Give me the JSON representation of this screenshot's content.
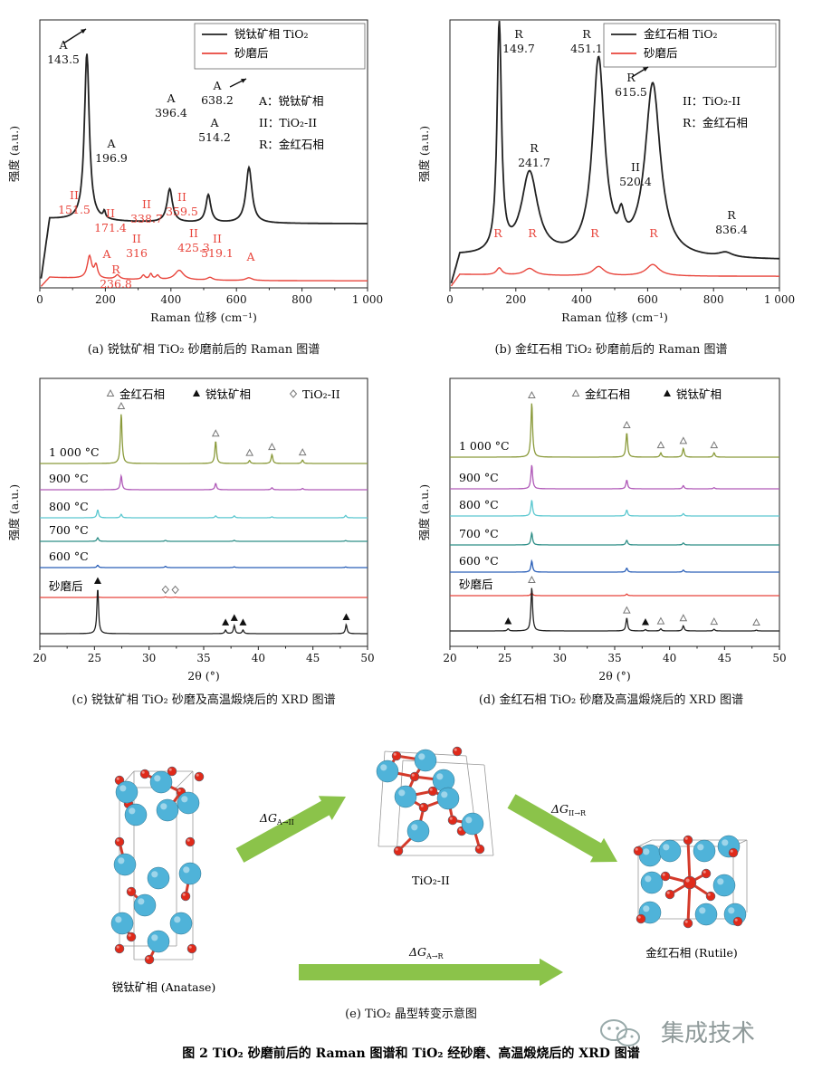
{
  "figure_caption": "图 2 TiO₂ 砂磨前后的 Raman 图谱和 TiO₂ 经砂磨、高温煅烧后的 XRD 图谱",
  "watermark": "集成技术",
  "colors": {
    "black": "#222222",
    "red": "#e8453c",
    "olive": "#8a9a3a",
    "purple": "#b05ab8",
    "cyan": "#5cc8d0",
    "teal": "#2f8f88",
    "blue": "#2a5fb8",
    "arrow_green": "#8bc34a",
    "ti_blue": "#4fb3d9",
    "o_red": "#e02a1a"
  },
  "chart_data": [
    {
      "id": "a",
      "type": "line",
      "caption": "(a) 锐钛矿相 TiO₂ 砂磨前后的 Raman 图谱",
      "xlabel": "Raman 位移 (cm⁻¹)",
      "ylabel": "强度 (a.u.)",
      "xlim": [
        0,
        1000
      ],
      "xticks": [
        "0",
        "200",
        "400",
        "600",
        "800",
        "1 000"
      ],
      "legend": [
        "锐钛矿相 TiO₂",
        "砂磨后"
      ],
      "legend_placement": "top-right",
      "phase_key": [
        "A：锐钛矿相",
        "II：TiO₂-II",
        "R：金红石相"
      ],
      "series": [
        {
          "name": "锐钛矿相 TiO₂",
          "color": "black",
          "baseline": 0.46,
          "background": [
            0.04,
            0.0
          ],
          "peaks": [
            [
              143.5,
              1.2,
              9
            ],
            [
              196.9,
              0.05,
              4
            ],
            [
              396.4,
              0.24,
              10
            ],
            [
              514.2,
              0.2,
              9
            ],
            [
              638.2,
              0.4,
              11
            ]
          ]
        },
        {
          "name": "砂磨后",
          "color": "red",
          "baseline": 0.05,
          "background": [
            0.03,
            0.0
          ],
          "peaks": [
            [
              151.5,
              0.16,
              8
            ],
            [
              171.4,
              0.09,
              6
            ],
            [
              236.8,
              0.03,
              8
            ],
            [
              316,
              0.03,
              6
            ],
            [
              338.7,
              0.04,
              5
            ],
            [
              359.5,
              0.03,
              6
            ],
            [
              425.3,
              0.07,
              16
            ],
            [
              519.1,
              0.02,
              10
            ],
            [
              638,
              0.02,
              12
            ]
          ]
        }
      ],
      "annotations": [
        {
          "text": "A",
          "value": "143.5",
          "x": 143.5,
          "color": "black"
        },
        {
          "text": "A",
          "value": "196.9",
          "x": 196.9,
          "color": "black"
        },
        {
          "text": "A",
          "value": "396.4",
          "x": 396.4,
          "color": "black"
        },
        {
          "text": "A",
          "value": "514.2",
          "x": 514.2,
          "color": "black"
        },
        {
          "text": "A",
          "value": "638.2",
          "x": 638.2,
          "color": "black"
        },
        {
          "text": "II",
          "value": "151.5",
          "x": 151.5,
          "color": "red"
        },
        {
          "text": "II",
          "value": "171.4",
          "x": 171.4,
          "color": "red"
        },
        {
          "text": "R",
          "value": "236.8",
          "x": 236.8,
          "color": "red"
        },
        {
          "text": "A",
          "value": "",
          "x": 200,
          "color": "red"
        },
        {
          "text": "II",
          "value": "316",
          "x": 316,
          "color": "red"
        },
        {
          "text": "II",
          "value": "338.7",
          "x": 338.7,
          "color": "red"
        },
        {
          "text": "II",
          "value": "359.5",
          "x": 359.5,
          "color": "red"
        },
        {
          "text": "II",
          "value": "425.3",
          "x": 425.3,
          "color": "red"
        },
        {
          "text": "II",
          "value": "519.1",
          "x": 519.1,
          "color": "red"
        },
        {
          "text": "A",
          "value": "",
          "x": 638,
          "color": "red"
        }
      ]
    },
    {
      "id": "b",
      "type": "line",
      "caption": "(b) 金红石相 TiO₂ 砂磨前后的 Raman 图谱",
      "xlabel": "Raman 位移 (cm⁻¹)",
      "ylabel": "强度 (a.u.)",
      "xlim": [
        0,
        1000
      ],
      "xticks": [
        "0",
        "200",
        "400",
        "600",
        "800",
        "1 000"
      ],
      "legend": [
        "金红石相 TiO₂",
        "砂磨后"
      ],
      "legend_placement": "top-right",
      "phase_key": [
        "II：TiO₂-II",
        "R：金红石相"
      ],
      "series": [
        {
          "name": "金红石相 TiO₂",
          "color": "black",
          "baseline": 0.12,
          "background": [
            0.02,
            0.0
          ],
          "peaks": [
            [
              149.7,
              1.0,
              8
            ],
            [
              241.7,
              0.36,
              30
            ],
            [
              451.1,
              0.85,
              22
            ],
            [
              520.4,
              0.1,
              10
            ],
            [
              615.5,
              0.75,
              28
            ],
            [
              836.4,
              0.02,
              25
            ]
          ]
        },
        {
          "name": "砂磨后",
          "color": "red",
          "baseline": 0.05,
          "background": [
            0.01,
            0.0
          ],
          "peaks": [
            [
              149.7,
              0.03,
              10
            ],
            [
              241.7,
              0.03,
              20
            ],
            [
              451.1,
              0.04,
              20
            ],
            [
              615.5,
              0.05,
              24
            ]
          ]
        }
      ],
      "annotations": [
        {
          "text": "R",
          "value": "149.7",
          "x": 149.7,
          "color": "black"
        },
        {
          "text": "R",
          "value": "241.7",
          "x": 241.7,
          "color": "black"
        },
        {
          "text": "R",
          "value": "451.1",
          "x": 451.1,
          "color": "black"
        },
        {
          "text": "R",
          "value": "615.5",
          "x": 615.5,
          "color": "black"
        },
        {
          "text": "II",
          "value": "520.4",
          "x": 520.4,
          "color": "black"
        },
        {
          "text": "R",
          "value": "836.4",
          "x": 836.4,
          "color": "black"
        },
        {
          "text": "R",
          "value": "",
          "x": 149.7,
          "color": "red"
        },
        {
          "text": "R",
          "value": "",
          "x": 241.7,
          "color": "red"
        },
        {
          "text": "R",
          "value": "",
          "x": 451.1,
          "color": "red"
        },
        {
          "text": "R",
          "value": "",
          "x": 615.5,
          "color": "red"
        }
      ]
    },
    {
      "id": "c",
      "type": "line",
      "caption": "(c) 锐钛矿相 TiO₂ 砂磨及高温煅烧后的 XRD 图谱",
      "xlabel": "2θ (°)",
      "ylabel": "强度 (a.u.)",
      "xlim": [
        20,
        50
      ],
      "xticks": [
        "20",
        "25",
        "30",
        "35",
        "40",
        "45",
        "50"
      ],
      "legend": [
        "金红石相",
        "锐钛矿相",
        "TiO₂-II"
      ],
      "legend_placement": "top",
      "series": [
        {
          "name": "1 000 °C",
          "color": "olive",
          "peaks": [
            [
              27.45,
              1.0
            ],
            [
              36.1,
              0.45
            ],
            [
              39.2,
              0.06
            ],
            [
              41.25,
              0.18
            ],
            [
              44.05,
              0.07
            ]
          ],
          "markers": [
            {
              "shape": "tri-open",
              "x": [
                27.45,
                36.1,
                39.2,
                41.25,
                44.05
              ]
            }
          ]
        },
        {
          "name": "900 °C",
          "color": "purple",
          "peaks": [
            [
              27.45,
              0.55
            ],
            [
              36.1,
              0.25
            ],
            [
              41.25,
              0.08
            ],
            [
              44.05,
              0.05
            ]
          ]
        },
        {
          "name": "800 °C",
          "color": "cyan",
          "peaks": [
            [
              25.3,
              0.4
            ],
            [
              27.45,
              0.18
            ],
            [
              36.1,
              0.1
            ],
            [
              37.8,
              0.1
            ],
            [
              41.25,
              0.05
            ],
            [
              48.0,
              0.12
            ]
          ]
        },
        {
          "name": "700 °C",
          "color": "teal",
          "peaks": [
            [
              25.3,
              0.18
            ],
            [
              31.5,
              0.05
            ],
            [
              37.8,
              0.05
            ],
            [
              48.0,
              0.04
            ]
          ]
        },
        {
          "name": "600 °C",
          "color": "blue",
          "peaks": [
            [
              25.3,
              0.12
            ],
            [
              31.5,
              0.06
            ],
            [
              37.8,
              0.04
            ],
            [
              48.0,
              0.03
            ]
          ]
        },
        {
          "name": "砂磨后",
          "color": "red",
          "peaks": [
            [
              25.3,
              0.04
            ],
            [
              31.5,
              0.03
            ],
            [
              32.4,
              0.02
            ]
          ],
          "markers": [
            {
              "shape": "diamond-open",
              "x": [
                31.5,
                32.4
              ]
            }
          ]
        },
        {
          "name": "",
          "color": "black",
          "peaks": [
            [
              25.3,
              1.0
            ],
            [
              37.0,
              0.08
            ],
            [
              37.8,
              0.18
            ],
            [
              38.6,
              0.08
            ],
            [
              48.05,
              0.2
            ]
          ],
          "markers": [
            {
              "shape": "tri-filled",
              "x": [
                25.3,
                37.0,
                37.8,
                38.6,
                48.05
              ]
            }
          ]
        }
      ]
    },
    {
      "id": "d",
      "type": "line",
      "caption": "(d) 金红石相 TiO₂ 砂磨及高温煅烧后的 XRD 图谱",
      "xlabel": "2θ (°)",
      "ylabel": "强度 (a.u.)",
      "xlim": [
        20,
        50
      ],
      "xticks": [
        "20",
        "25",
        "30",
        "35",
        "40",
        "45",
        "50"
      ],
      "legend": [
        "金红石相",
        "锐钛矿相"
      ],
      "legend_placement": "top",
      "series": [
        {
          "name": "1 000 °C",
          "color": "olive",
          "peaks": [
            [
              27.45,
              1.0
            ],
            [
              36.1,
              0.45
            ],
            [
              39.2,
              0.08
            ],
            [
              41.25,
              0.16
            ],
            [
              44.05,
              0.08
            ]
          ],
          "markers": [
            {
              "shape": "tri-open",
              "x": [
                27.45,
                36.1,
                39.2,
                41.25,
                44.05
              ]
            }
          ]
        },
        {
          "name": "900 °C",
          "color": "purple",
          "peaks": [
            [
              27.45,
              0.6
            ],
            [
              36.1,
              0.22
            ],
            [
              41.25,
              0.08
            ],
            [
              44.05,
              0.03
            ]
          ]
        },
        {
          "name": "800 °C",
          "color": "cyan",
          "peaks": [
            [
              27.45,
              0.4
            ],
            [
              36.1,
              0.15
            ],
            [
              41.25,
              0.06
            ]
          ]
        },
        {
          "name": "700 °C",
          "color": "teal",
          "peaks": [
            [
              27.45,
              0.3
            ],
            [
              36.1,
              0.12
            ],
            [
              41.25,
              0.05
            ]
          ]
        },
        {
          "name": "600 °C",
          "color": "blue",
          "peaks": [
            [
              27.45,
              0.28
            ],
            [
              36.1,
              0.1
            ],
            [
              41.25,
              0.05
            ]
          ]
        },
        {
          "name": "砂磨后",
          "color": "red",
          "peaks": [
            [
              27.45,
              0.08
            ],
            [
              36.1,
              0.04
            ]
          ]
        },
        {
          "name": "",
          "color": "black",
          "peaks": [
            [
              25.3,
              0.05
            ],
            [
              27.45,
              1.0
            ],
            [
              36.1,
              0.3
            ],
            [
              37.8,
              0.03
            ],
            [
              39.2,
              0.05
            ],
            [
              41.25,
              0.12
            ],
            [
              44.05,
              0.04
            ],
            [
              47.9,
              0.02
            ]
          ],
          "markers": [
            {
              "shape": "tri-open",
              "x": [
                27.45,
                36.1,
                39.2,
                41.25,
                44.05,
                47.9
              ]
            },
            {
              "shape": "tri-filled",
              "x": [
                25.3,
                37.8
              ]
            }
          ]
        }
      ]
    }
  ],
  "diagram_e": {
    "caption": "(e) TiO₂ 晶型转变示意图",
    "nodes": [
      "锐钛矿相 (Anatase)",
      "TiO₂-II",
      "金红石相 (Rutile)"
    ],
    "arrows": [
      "ΔG A→II",
      "ΔG II→R",
      "ΔG A→R"
    ]
  }
}
